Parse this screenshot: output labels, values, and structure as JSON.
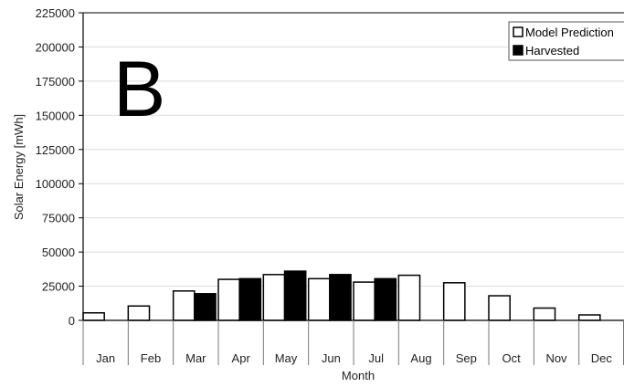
{
  "chart_data": {
    "type": "bar",
    "panel_label": "B",
    "categories": [
      "Jan",
      "Feb",
      "Mar",
      "Apr",
      "May",
      "Jun",
      "Jul",
      "Aug",
      "Sep",
      "Oct",
      "Nov",
      "Dec"
    ],
    "series": [
      {
        "name": "Model Prediction",
        "color": "#ffffff",
        "values": [
          5500,
          10500,
          21500,
          30000,
          33500,
          30500,
          28000,
          33000,
          27500,
          18000,
          9000,
          4000
        ]
      },
      {
        "name": "Harvested",
        "color": "#000000",
        "values": [
          null,
          null,
          19500,
          30500,
          36000,
          33500,
          30500,
          null,
          null,
          null,
          null,
          null
        ]
      }
    ],
    "xlabel": "Month",
    "ylabel": "Solar Energy [mWh]",
    "ylim": [
      0,
      225000
    ],
    "yticks": [
      0,
      25000,
      50000,
      75000,
      100000,
      125000,
      150000,
      175000,
      200000,
      225000
    ],
    "grid": true,
    "legend_position": "top-right"
  }
}
